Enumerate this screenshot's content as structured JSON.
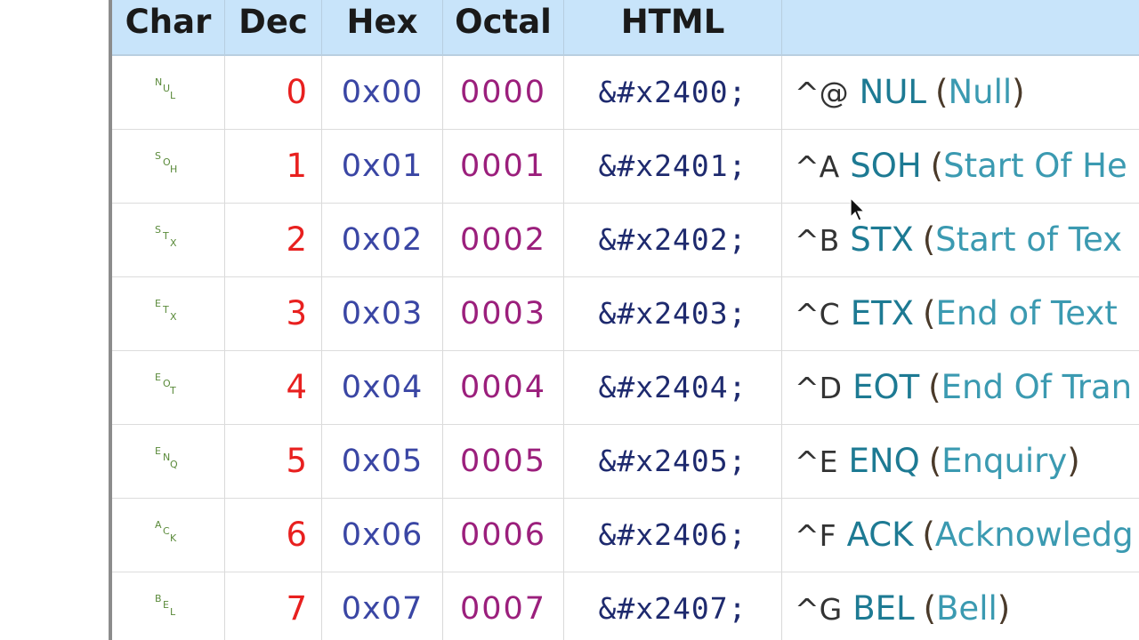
{
  "header": {
    "char": "Char",
    "dec": "Dec",
    "hex": "Hex",
    "octal": "Octal",
    "html": "HTML",
    "desc": ""
  },
  "rows": [
    {
      "sym": [
        "N",
        "U",
        "L"
      ],
      "dec": "0",
      "hex": "0x00",
      "oct": "0000",
      "html": "&#x2400;",
      "caret": "^@",
      "abbr": "NUL",
      "name": "Null",
      "name_visible": "Null",
      "closed": true
    },
    {
      "sym": [
        "S",
        "O",
        "H"
      ],
      "dec": "1",
      "hex": "0x01",
      "oct": "0001",
      "html": "&#x2401;",
      "caret": "^A",
      "abbr": "SOH",
      "name": "Start Of He",
      "closed": false
    },
    {
      "sym": [
        "S",
        "T",
        "X"
      ],
      "dec": "2",
      "hex": "0x02",
      "oct": "0002",
      "html": "&#x2402;",
      "caret": "^B",
      "abbr": "STX",
      "name": "Start of Tex",
      "closed": false
    },
    {
      "sym": [
        "E",
        "T",
        "X"
      ],
      "dec": "3",
      "hex": "0x03",
      "oct": "0003",
      "html": "&#x2403;",
      "caret": "^C",
      "abbr": "ETX",
      "name": "End of Text",
      "closed": false
    },
    {
      "sym": [
        "E",
        "O",
        "T"
      ],
      "dec": "4",
      "hex": "0x04",
      "oct": "0004",
      "html": "&#x2404;",
      "caret": "^D",
      "abbr": "EOT",
      "name": "End Of Tran",
      "closed": false
    },
    {
      "sym": [
        "E",
        "N",
        "Q"
      ],
      "dec": "5",
      "hex": "0x05",
      "oct": "0005",
      "html": "&#x2405;",
      "caret": "^E",
      "abbr": "ENQ",
      "name": "Enquiry",
      "closed": true
    },
    {
      "sym": [
        "A",
        "C",
        "K"
      ],
      "dec": "6",
      "hex": "0x06",
      "oct": "0006",
      "html": "&#x2406;",
      "caret": "^F",
      "abbr": "ACK",
      "name": "Acknowledg",
      "closed": false
    },
    {
      "sym": [
        "B",
        "E",
        "L"
      ],
      "dec": "7",
      "hex": "0x07",
      "oct": "0007",
      "html": "&#x2407;",
      "caret": "^G",
      "abbr": "BEL",
      "name": "Bell",
      "closed": true
    }
  ],
  "colors": {
    "header_bg": "#c8e4fa",
    "dec": "#e8201f",
    "hex": "#3a46a4",
    "octal": "#9b1f7c",
    "html": "#1e2a6e",
    "abbr": "#1d7a93",
    "name": "#3b9ab1"
  },
  "icons": {
    "cursor": "mouse-pointer-icon"
  }
}
